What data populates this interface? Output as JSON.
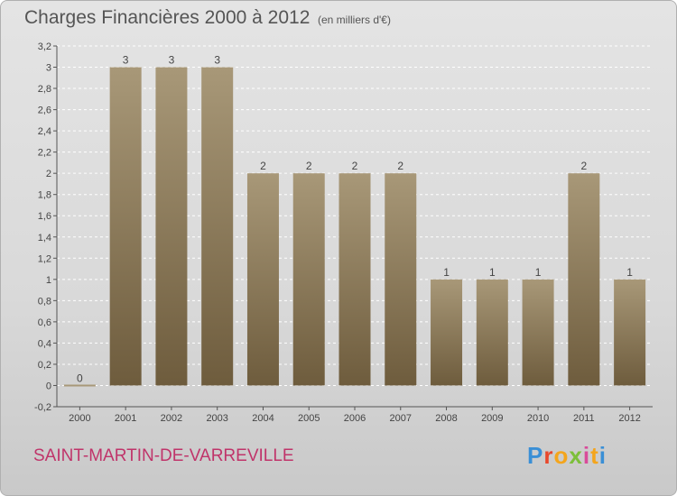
{
  "header": {
    "title": "Charges Financières 2000 à 2012",
    "subtitle": "(en milliers d'€)"
  },
  "footer": {
    "commune": "SAINT-MARTIN-DE-VARREVILLE",
    "logo_letters": [
      "P",
      "r",
      "o",
      "x",
      "i",
      "t",
      "i"
    ],
    "logo_colors": [
      "#3a8fd6",
      "#e8482c",
      "#f4a51c",
      "#7cbf3a",
      "#d94b9a",
      "#f4a51c",
      "#3a8fd6"
    ]
  },
  "colors": {
    "bar_top": "#a89878",
    "bar_bottom": "#6e5c3d",
    "axis": "#555555",
    "grid": "#ffffff"
  },
  "chart_data": {
    "type": "bar",
    "categories": [
      "2000",
      "2001",
      "2002",
      "2003",
      "2004",
      "2005",
      "2006",
      "2007",
      "2008",
      "2009",
      "2010",
      "2011",
      "2012"
    ],
    "values": [
      0,
      3,
      3,
      3,
      2,
      2,
      2,
      2,
      1,
      1,
      1,
      2,
      1
    ],
    "data_labels": [
      "0",
      "3",
      "3",
      "3",
      "2",
      "2",
      "2",
      "2",
      "1",
      "1",
      "1",
      "2",
      "1"
    ],
    "yticks": [
      -0.2,
      0,
      0.2,
      0.4,
      0.6,
      0.8,
      1,
      1.2,
      1.4,
      1.6,
      1.8,
      2,
      2.2,
      2.4,
      2.6,
      2.8,
      3,
      3.2
    ],
    "ytick_labels": [
      "-0,2",
      "0",
      "0,2",
      "0,4",
      "0,6",
      "0,8",
      "1",
      "1,2",
      "1,4",
      "1,6",
      "1,8",
      "2",
      "2,2",
      "2,4",
      "2,6",
      "2,8",
      "3",
      "3,2"
    ],
    "ylim": [
      -0.2,
      3.2
    ],
    "grid": true
  }
}
